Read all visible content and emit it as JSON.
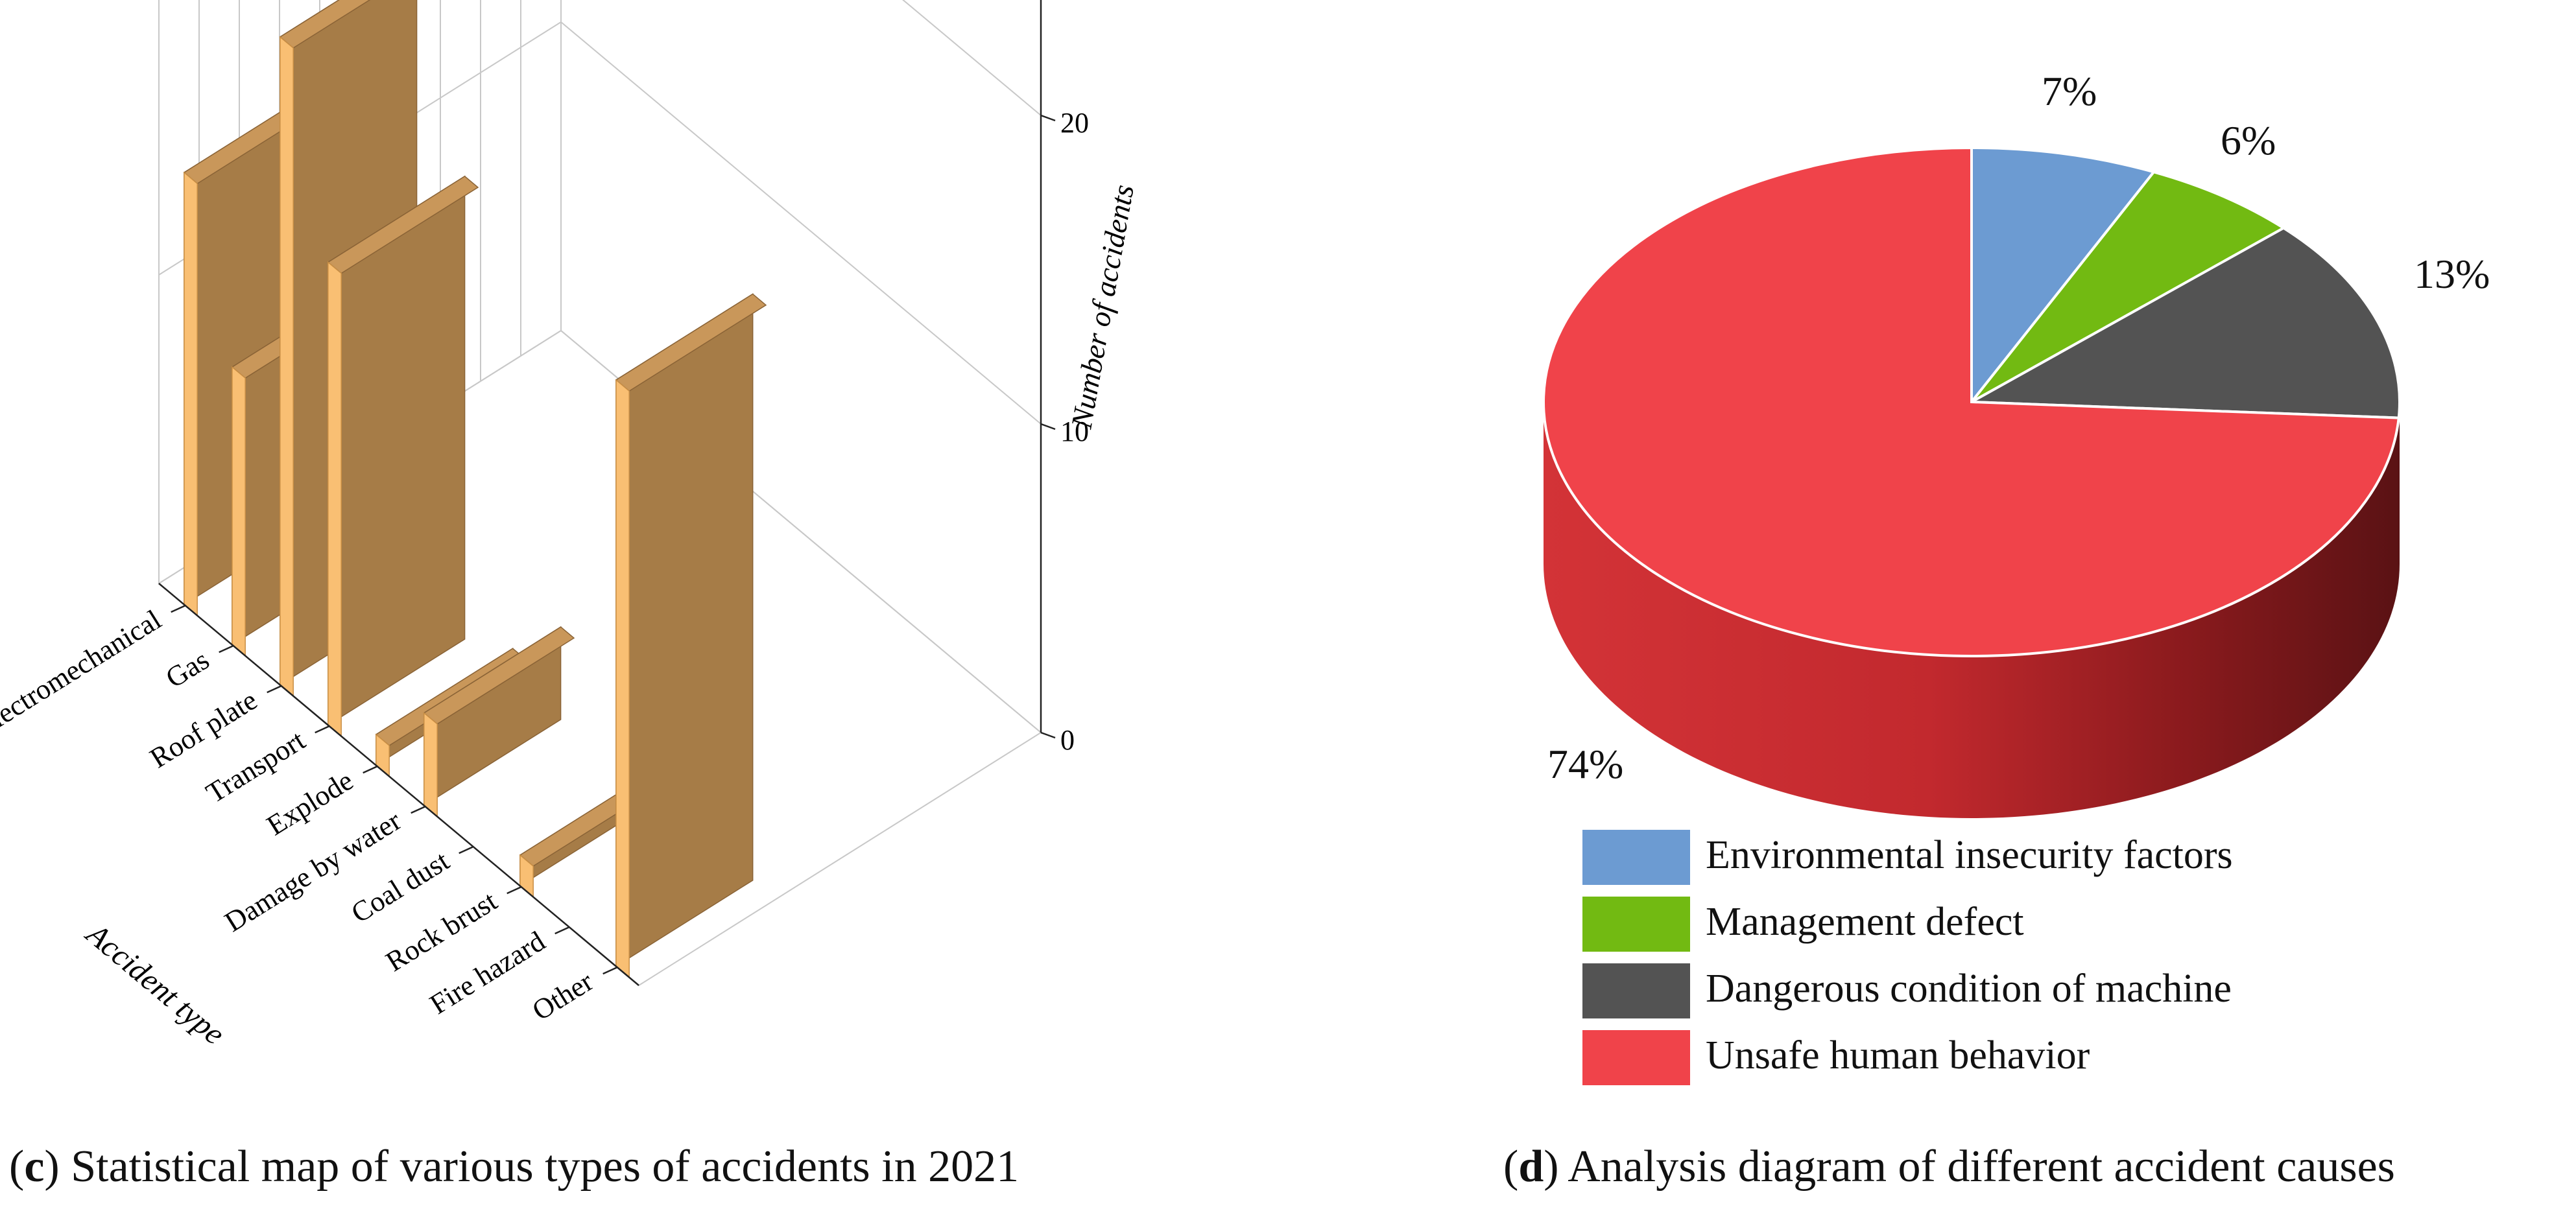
{
  "caption_c": {
    "letter": "c",
    "text": "Statistical map of various types of accidents in 2021"
  },
  "caption_d": {
    "letter": "d",
    "text": "Analysis diagram of different accident causes"
  },
  "chart_data": [
    {
      "type": "bar",
      "title": "",
      "xlabel": "Accident type",
      "zlabel": "Number of accidents",
      "categories": [
        "Other",
        "Fire hazard",
        "Rock brust",
        "Coal dust",
        "Damage by water",
        "Explode",
        "Transport",
        "Roof plate",
        "Gas",
        "Electromechanical"
      ],
      "values": [
        19,
        0,
        1,
        0,
        3,
        1,
        15,
        21,
        9,
        14
      ],
      "zlim": [
        0,
        25
      ],
      "zticks": [
        0,
        10,
        20
      ],
      "bar_color": "#F9BF73",
      "bar_shade_color": "#A67C47",
      "grid": true
    },
    {
      "type": "pie",
      "categories": [
        "Environmental insecurity factors",
        "Management defect",
        "Dangerous condition of machine",
        "Unsafe human behavior"
      ],
      "values": [
        7,
        6,
        13,
        74
      ],
      "labels": [
        "7%",
        "6%",
        "13%",
        "74%"
      ],
      "colors": [
        "#6C9BD2",
        "#72BA12",
        "#535353",
        "#F0434A"
      ],
      "legend_position": "bottom"
    }
  ]
}
